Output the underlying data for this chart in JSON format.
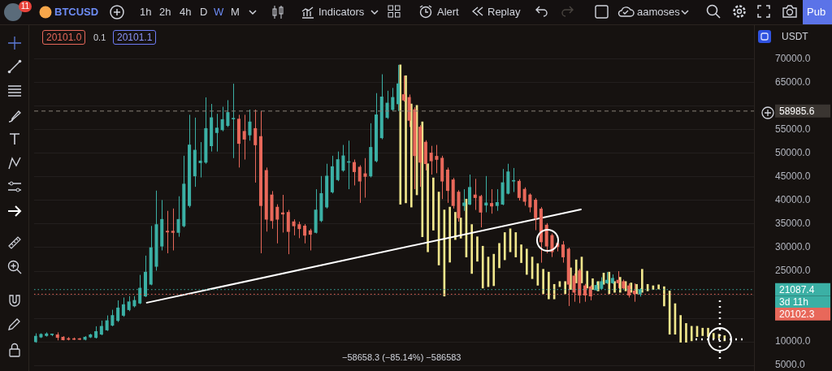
{
  "chart_data": {
    "type": "candlestick",
    "tick_labels": "y",
    "grid": "y",
    "legend": false,
    "categories": [
      null,
      null,
      null,
      null,
      null,
      null,
      null,
      null,
      null,
      null,
      null,
      null,
      null,
      null,
      null,
      null,
      null,
      null,
      null,
      null,
      null,
      null,
      null,
      null,
      null,
      null,
      null,
      null,
      null,
      null,
      null,
      null,
      null,
      null,
      null,
      null,
      null,
      null,
      null,
      null,
      null,
      null,
      null,
      null,
      null,
      null,
      null,
      null,
      null,
      null,
      null,
      null,
      null,
      null,
      null,
      null,
      null,
      null,
      null,
      null,
      null,
      null,
      null,
      null,
      null,
      null,
      null,
      null,
      null,
      null,
      null,
      null,
      null,
      null,
      null,
      null,
      null,
      null,
      null,
      null,
      null,
      null,
      null,
      null,
      null,
      null,
      null,
      null,
      null,
      null,
      null,
      null,
      null,
      null,
      null,
      null,
      null,
      null,
      null,
      null,
      null,
      null,
      null,
      null,
      null,
      null,
      null,
      null,
      null,
      null,
      null,
      null,
      null,
      null,
      null,
      null,
      null,
      null,
      null,
      null,
      null,
      null,
      null,
      null,
      null,
      null,
      null,
      null,
      null,
      null,
      null
    ],
    "ohlc": [
      [
        10000,
        11800,
        9800,
        11200
      ],
      [
        11000,
        11800,
        10800,
        11600
      ],
      [
        11300,
        12000,
        11100,
        11700
      ],
      [
        11500,
        11700,
        11200,
        11600
      ],
      [
        11500,
        12000,
        10300,
        10900
      ],
      [
        11000,
        11200,
        10300,
        10400
      ],
      [
        10700,
        11000,
        10300,
        10500
      ],
      [
        10600,
        10900,
        10400,
        10500
      ],
      [
        10600,
        10800,
        10400,
        10500
      ],
      [
        10500,
        11200,
        10300,
        11000
      ],
      [
        11000,
        11700,
        10800,
        11500
      ],
      [
        10900,
        13300,
        10700,
        12200
      ],
      [
        11600,
        14500,
        11400,
        13300
      ],
      [
        12500,
        15600,
        12300,
        14500
      ],
      [
        13500,
        16800,
        13300,
        15600
      ],
      [
        14500,
        18800,
        14200,
        17200
      ],
      [
        15600,
        19400,
        15300,
        17900
      ],
      [
        16800,
        19700,
        16500,
        18500
      ],
      [
        17600,
        19700,
        17300,
        18800
      ],
      [
        18200,
        24200,
        18000,
        21400
      ],
      [
        19700,
        28300,
        19500,
        24800
      ],
      [
        22200,
        34600,
        22000,
        30000
      ],
      [
        26000,
        42100,
        25100,
        34900
      ],
      [
        30300,
        40100,
        29400,
        36000
      ],
      [
        33500,
        37800,
        28800,
        33300
      ],
      [
        33500,
        38300,
        29400,
        33200
      ],
      [
        33200,
        40900,
        32300,
        36000
      ],
      [
        34600,
        49500,
        34300,
        43500
      ],
      [
        38900,
        58200,
        38500,
        51800
      ],
      [
        45200,
        57600,
        42900,
        50700
      ],
      [
        48000,
        52400,
        44900,
        48400
      ],
      [
        48100,
        61900,
        47800,
        55300
      ],
      [
        51600,
        60500,
        50400,
        57600
      ],
      [
        54400,
        58400,
        50400,
        55400
      ],
      [
        55000,
        59900,
        54700,
        57200
      ],
      [
        55900,
        61300,
        55600,
        58700
      ],
      [
        57300,
        64800,
        49000,
        57400
      ],
      [
        57300,
        58200,
        47000,
        52100
      ],
      [
        54700,
        58200,
        48700,
        53000
      ],
      [
        53900,
        59300,
        52700,
        56700
      ],
      [
        55300,
        59300,
        43800,
        51800
      ],
      [
        53600,
        59000,
        28800,
        38900
      ],
      [
        46400,
        47000,
        33400,
        36000
      ],
      [
        41200,
        42000,
        34000,
        35700
      ],
      [
        38600,
        39200,
        30900,
        36000
      ],
      [
        37400,
        41200,
        33200,
        37100
      ],
      [
        37500,
        38000,
        28600,
        33400
      ],
      [
        35500,
        36000,
        32600,
        34600
      ],
      [
        34900,
        35500,
        32000,
        34000
      ],
      [
        34600,
        35000,
        30900,
        32600
      ],
      [
        33600,
        34000,
        29400,
        32800
      ],
      [
        33200,
        42400,
        33000,
        38000
      ],
      [
        35700,
        45200,
        35400,
        41500
      ],
      [
        38600,
        47800,
        38300,
        45200
      ],
      [
        41800,
        49500,
        41500,
        47200
      ],
      [
        44400,
        50400,
        44100,
        48700
      ],
      [
        46400,
        51800,
        46100,
        49500
      ],
      [
        48100,
        52700,
        42400,
        48200
      ],
      [
        48100,
        48700,
        43200,
        46100
      ],
      [
        47100,
        47500,
        39500,
        44100
      ],
      [
        45700,
        49000,
        40600,
        45100
      ],
      [
        45200,
        56400,
        44900,
        51300
      ],
      [
        48400,
        62800,
        48100,
        58200
      ],
      [
        53300,
        66800,
        53000,
        62000
      ],
      [
        57600,
        63300,
        57300,
        60700
      ],
      [
        59300,
        63900,
        59000,
        61900
      ],
      [
        60500,
        68800,
        59000,
        64800
      ],
      [
        62500,
        66500,
        61000,
        61300
      ],
      [
        61900,
        62500,
        55600,
        57000
      ],
      [
        59300,
        59800,
        42400,
        49500
      ],
      [
        55600,
        56000,
        42900,
        48100
      ],
      [
        52400,
        52800,
        46400,
        47800
      ],
      [
        50100,
        51600,
        45500,
        48400
      ],
      [
        49400,
        51800,
        45800,
        48700
      ],
      [
        49000,
        49500,
        40300,
        44100
      ],
      [
        46500,
        47000,
        39500,
        42100
      ],
      [
        44400,
        44800,
        38300,
        38900
      ],
      [
        41800,
        42200,
        35500,
        36300
      ],
      [
        38900,
        42400,
        37800,
        39500
      ],
      [
        39200,
        45500,
        39000,
        42800
      ],
      [
        41200,
        44600,
        38000,
        40600
      ],
      [
        40900,
        41200,
        34300,
        37500
      ],
      [
        39000,
        45200,
        37500,
        39500
      ],
      [
        39400,
        42400,
        37200,
        38800
      ],
      [
        38900,
        42400,
        37800,
        39600
      ],
      [
        39200,
        46700,
        39000,
        43800
      ],
      [
        41500,
        47800,
        41300,
        46100
      ],
      [
        44100,
        46900,
        41800,
        44200
      ],
      [
        44100,
        44500,
        40000,
        40600
      ],
      [
        42400,
        42800,
        38900,
        39800
      ],
      [
        41200,
        41500,
        37500,
        38600
      ],
      [
        40100,
        40500,
        33700,
        36300
      ],
      [
        38200,
        38600,
        26800,
        31200
      ],
      [
        34800,
        35200,
        28800,
        30300
      ],
      [
        32600,
        33000,
        28000,
        29100
      ],
      [
        30900,
        31400,
        29200,
        30200
      ],
      [
        30600,
        31400,
        26800,
        28000
      ],
      [
        29700,
        30000,
        17600,
        22200
      ],
      [
        24000,
        24500,
        18500,
        20500
      ],
      [
        25100,
        25500,
        18200,
        19900
      ],
      [
        21900,
        22300,
        18500,
        19900
      ],
      [
        21700,
        22000,
        18800,
        19700
      ],
      [
        21000,
        22800,
        20800,
        22000
      ],
      [
        21300,
        23700,
        21100,
        22800
      ],
      [
        22500,
        24800,
        22300,
        23100
      ],
      [
        22500,
        24300,
        22300,
        23500
      ],
      [
        23100,
        25000,
        21400,
        22500
      ],
      [
        22800,
        23200,
        21200,
        21400
      ],
      [
        21900,
        22400,
        19400,
        19900
      ],
      [
        20800,
        22400,
        18500,
        20200
      ],
      [
        20100,
        21400,
        19600,
        21100
      ],
      null,
      null,
      null,
      null,
      null,
      null,
      null,
      null,
      null,
      null,
      null,
      null,
      null,
      null,
      null,
      null,
      null,
      null,
      null,
      null
    ],
    "colors": [
      "#3bb0a5",
      "#3bb0a5",
      "#3bb0a5",
      "#3bb0a5",
      "#e8685a",
      "#e8685a",
      "#e8685a",
      "#e8685a",
      "#e8685a",
      "#3bb0a5",
      "#3bb0a5",
      "#3bb0a5",
      "#3bb0a5",
      "#3bb0a5",
      "#3bb0a5",
      "#3bb0a5",
      "#3bb0a5",
      "#3bb0a5",
      "#3bb0a5",
      "#3bb0a5",
      "#3bb0a5",
      "#3bb0a5",
      "#3bb0a5",
      "#3bb0a5",
      "#e8685a",
      "#e8685a",
      "#3bb0a5",
      "#3bb0a5",
      "#3bb0a5",
      "#3bb0a5",
      "#3bb0a5",
      "#3bb0a5",
      "#3bb0a5",
      "#3bb0a5",
      "#3bb0a5",
      "#3bb0a5",
      "#3bb0a5",
      "#e8685a",
      "#e8685a",
      "#3bb0a5",
      "#e8685a",
      "#e8685a",
      "#e8685a",
      "#e8685a",
      "#e8685a",
      "#e8685a",
      "#e8685a",
      "#e8685a",
      "#e8685a",
      "#e8685a",
      "#e8685a",
      "#3bb0a5",
      "#3bb0a5",
      "#3bb0a5",
      "#3bb0a5",
      "#3bb0a5",
      "#3bb0a5",
      "#3bb0a5",
      "#e8685a",
      "#e8685a",
      "#e8685a",
      "#3bb0a5",
      "#3bb0a5",
      "#3bb0a5",
      "#3bb0a5",
      "#3bb0a5",
      "#3bb0a5",
      "#e8685a",
      "#e8685a",
      "#e8685a",
      "#e8685a",
      "#e8685a",
      "#e8685a",
      "#e8685a",
      "#e8685a",
      "#e8685a",
      "#e8685a",
      "#e8685a",
      "#3bb0a5",
      "#3bb0a5",
      "#e8685a",
      "#e8685a",
      "#3bb0a5",
      "#e8685a",
      "#3bb0a5",
      "#3bb0a5",
      "#3bb0a5",
      "#3bb0a5",
      "#e8685a",
      "#e8685a",
      "#e8685a",
      "#e8685a",
      "#e8685a",
      "#e8685a",
      "#e8685a",
      "#e8685a",
      "#e8685a",
      "#e8685a",
      "#e8685a",
      "#e8685a",
      "#e8685a",
      "#e8685a",
      "#3bb0a5",
      "#3bb0a5",
      "#3bb0a5",
      "#3bb0a5",
      "#e8685a",
      "#e8685a",
      "#e8685a",
      "#e8685a",
      "#3bb0a5",
      null,
      null,
      null,
      null,
      null,
      null,
      null,
      null,
      null,
      null,
      null,
      null,
      null,
      null,
      null,
      null,
      null,
      null,
      null,
      null
    ],
    "series": [
      {
        "type": "bar",
        "color": "#f0e68c",
        "base": [
          null,
          null,
          null,
          null,
          null,
          null,
          null,
          null,
          null,
          null,
          null,
          null,
          null,
          null,
          null,
          null,
          null,
          null,
          null,
          null,
          null,
          null,
          null,
          null,
          null,
          null,
          null,
          null,
          null,
          null,
          null,
          null,
          null,
          null,
          null,
          null,
          null,
          null,
          null,
          null,
          null,
          null,
          null,
          null,
          null,
          null,
          null,
          null,
          null,
          null,
          null,
          null,
          null,
          null,
          null,
          null,
          null,
          null,
          null,
          null,
          null,
          null,
          null,
          null,
          null,
          null,
          39200,
          39500,
          38600,
          41200,
          32300,
          29100,
          33700,
          26300,
          19700,
          26900,
          31700,
          32000,
          28000,
          24500,
          27100,
          21400,
          21700,
          21900,
          25700,
          27400,
          29100,
          28000,
          26800,
          24300,
          23400,
          22000,
          20200,
          19100,
          19100,
          21700,
          20200,
          21100,
          22500,
          22500,
          21400,
          21100,
          20800,
          22200,
          20200,
          20500,
          20500,
          20800,
          20500,
          20200,
          20500,
          20800,
          21100,
          21200,
          17600,
          11600,
          11600,
          9900,
          9900,
          10200,
          11100,
          11300,
          11100,
          10600,
          10800,
          10200,
          null,
          null,
          null,
          null,
          null
        ],
        "values": [
          null,
          null,
          null,
          null,
          null,
          null,
          null,
          null,
          null,
          null,
          null,
          null,
          null,
          null,
          null,
          null,
          null,
          null,
          null,
          null,
          null,
          null,
          null,
          null,
          null,
          null,
          null,
          null,
          null,
          null,
          null,
          null,
          null,
          null,
          null,
          null,
          null,
          null,
          null,
          null,
          null,
          null,
          null,
          null,
          null,
          null,
          null,
          null,
          null,
          null,
          null,
          null,
          null,
          null,
          null,
          null,
          null,
          null,
          null,
          null,
          null,
          null,
          null,
          null,
          null,
          null,
          29600,
          27000,
          21900,
          19000,
          24400,
          18700,
          11100,
          15500,
          18300,
          11700,
          5800,
          4300,
          12300,
          10400,
          5200,
          8900,
          6300,
          6700,
          5200,
          5800,
          4900,
          5200,
          3800,
          5400,
          4600,
          4600,
          5200,
          5700,
          3100,
          1100,
          2600,
          4600,
          4900,
          5500,
          3600,
          2300,
          2000,
          2400,
          4600,
          2300,
          3200,
          2000,
          2000,
          2000,
          4900,
          1400,
          800,
          900,
          4100,
          9200,
          6500,
          5700,
          4000,
          3100,
          2200,
          1600,
          1800,
          1200,
          800,
          1100,
          null,
          null,
          null,
          null,
          null
        ]
      },
      {
        "type": "line",
        "color": "#ffffff",
        "values": [
          null,
          null,
          null,
          null,
          null,
          null,
          null,
          null,
          null,
          null,
          null,
          null,
          null,
          null,
          null,
          null,
          null,
          null,
          null,
          null,
          18300,
          null,
          null,
          null,
          null,
          null,
          null,
          null,
          null,
          null,
          null,
          null,
          null,
          null,
          null,
          null,
          null,
          null,
          null,
          null,
          null,
          null,
          null,
          null,
          null,
          null,
          null,
          null,
          null,
          null,
          null,
          null,
          null,
          null,
          null,
          null,
          null,
          null,
          null,
          null,
          null,
          null,
          null,
          null,
          null,
          null,
          null,
          null,
          null,
          null,
          null,
          null,
          null,
          null,
          null,
          null,
          null,
          null,
          null,
          null,
          null,
          null,
          null,
          null,
          null,
          null,
          null,
          null,
          null,
          null,
          null,
          null,
          null,
          null,
          null,
          null,
          null,
          null,
          null,
          38100,
          null,
          null,
          null,
          null,
          null,
          null,
          null,
          null,
          null,
          null,
          null,
          null,
          null,
          null,
          null,
          null,
          null,
          null,
          null,
          null,
          null,
          null,
          null,
          null,
          null,
          null,
          null,
          null,
          null,
          null,
          null
        ]
      }
    ],
    "ylim": [
      3800,
      77400
    ],
    "yticks": [
      {
        "value": 5000,
        "label": "5000.0"
      },
      {
        "value": 10000,
        "label": "10000.0"
      },
      {
        "value": 15000,
        "label": null
      },
      {
        "value": 20000,
        "label": null
      },
      {
        "value": 25000,
        "label": "25000.0"
      },
      {
        "value": 30000,
        "label": "30000.0"
      },
      {
        "value": 35000,
        "label": "35000.0"
      },
      {
        "value": 40000,
        "label": "40000.0"
      },
      {
        "value": 45000,
        "label": "45000.0"
      },
      {
        "value": 50000,
        "label": "50000.0"
      },
      {
        "value": 55000,
        "label": "55000.0"
      },
      {
        "value": 60000,
        "label": null
      },
      {
        "value": 65000,
        "label": "65000.0"
      },
      {
        "value": 70000,
        "label": "70000.0"
      }
    ],
    "ref_lines": [
      {
        "axis": "y",
        "value": 58985.6,
        "label": "58985.6",
        "color": "#8a8278",
        "line_style": "dashed"
      },
      {
        "axis": "y",
        "value": 21087.4,
        "label": "21087.4",
        "color": "#3bb0a5",
        "line_style": "dotted"
      },
      {
        "axis": "y",
        "value": 20102.3,
        "label": "20102.3",
        "color": "#e8685a",
        "line_style": "dotted"
      }
    ],
    "annotations": [
      "11",
      "BTCUSD",
      "1h",
      "2h",
      "4h",
      "D",
      "W",
      "M",
      "Indicators",
      "Alert",
      "Replay",
      "aamoses",
      "Pub",
      "20101.0",
      "0.1",
      "20101.1",
      "USDT",
      "3d 11h",
      "−58658.3 (−85.14%) −586583"
    ]
  }
}
